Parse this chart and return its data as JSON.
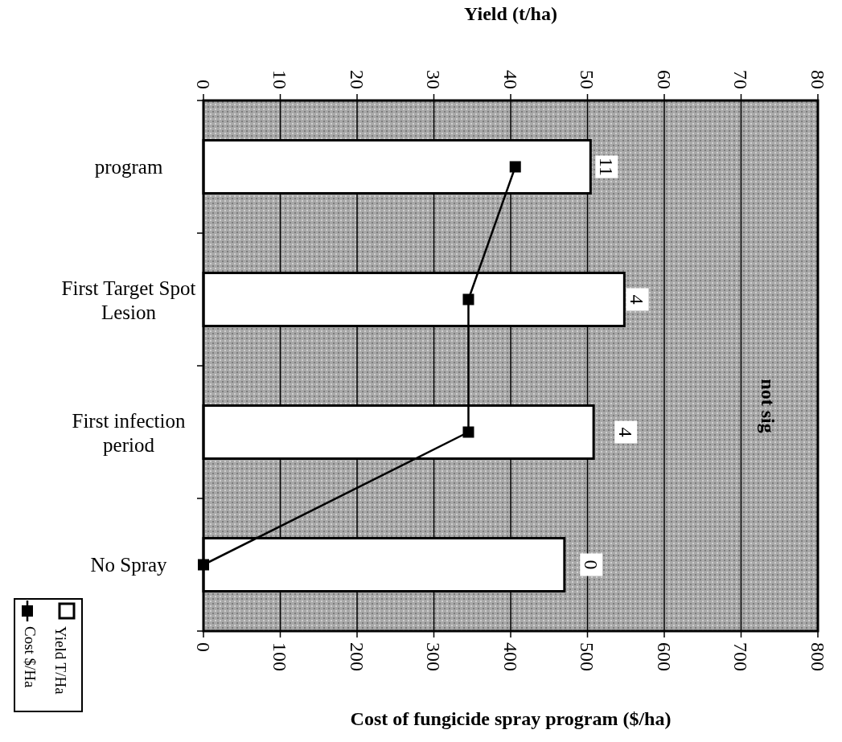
{
  "chart_data": {
    "type": "bar",
    "orientation": "horizontal",
    "categories": [
      "program",
      "First Target Spot Lesion",
      "First infection period",
      "No Spray"
    ],
    "series": [
      {
        "name": "Yield T/Ha",
        "axis": "x2",
        "color": "#ffffff",
        "values": [
          50.4,
          54.8,
          50.8,
          47.0
        ]
      },
      {
        "name": "Cost $/Ha",
        "type": "line",
        "color": "#000000",
        "marker": "square",
        "values": [
          406,
          345,
          345,
          0
        ]
      }
    ],
    "xlabel": "Cost of fungicide spray program ($/ha)",
    "x2label": "Yield (t/ha)",
    "xlim": [
      0,
      800
    ],
    "xticks": [
      0,
      100,
      200,
      300,
      400,
      500,
      600,
      700,
      800
    ],
    "x2lim": [
      0,
      80
    ],
    "x2ticks": [
      0,
      10,
      20,
      30,
      40,
      50,
      60,
      70,
      80
    ],
    "grid": "x",
    "legend": "bottom left",
    "annotations": [
      {
        "text": "11",
        "x": 525,
        "y": "program"
      },
      {
        "text": "4",
        "x": 565,
        "y": "First Target Spot Lesion"
      },
      {
        "text": "4",
        "x": 550,
        "y": "First infection period"
      },
      {
        "text": "0",
        "x": 505,
        "y": "No Spray"
      },
      "not sig"
    ]
  }
}
